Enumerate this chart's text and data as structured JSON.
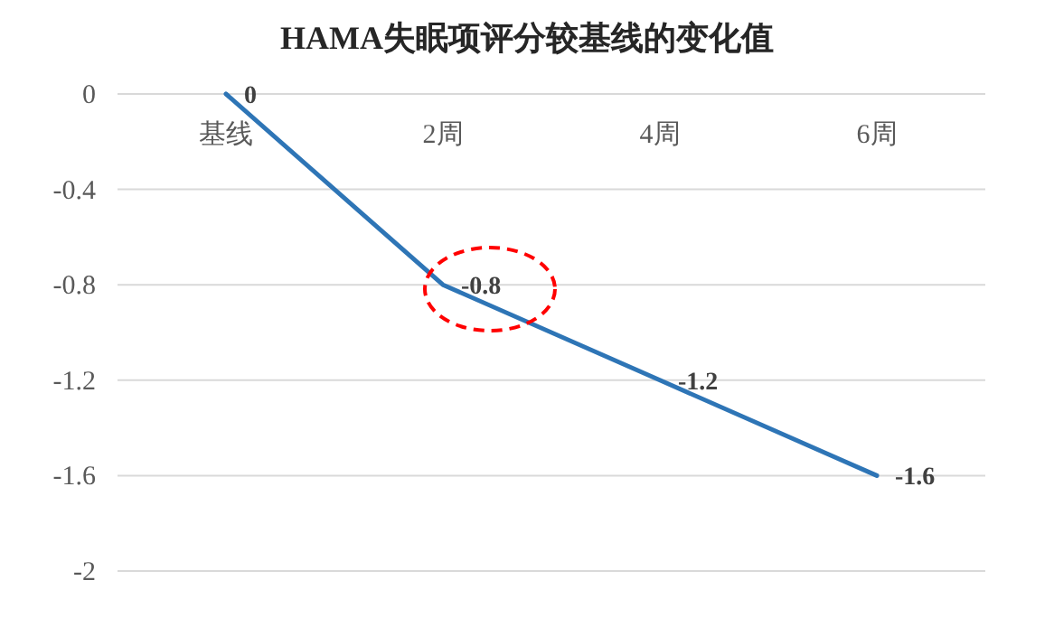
{
  "chart_data": {
    "type": "line",
    "title": "HAMA失眠项评分较基线的变化值",
    "categories": [
      "基线",
      "2周",
      "4周",
      "6周"
    ],
    "series": [
      {
        "color": "#2e75b6",
        "values": [
          0,
          -0.8,
          -1.2,
          -1.6
        ]
      }
    ],
    "ylim": [
      -2,
      0
    ],
    "yticks": [
      0,
      -0.4,
      -0.8,
      -1.2,
      -1.6,
      -2
    ],
    "grid": "y",
    "data_labels": true,
    "marker": "none",
    "line_style": "solid"
  }
}
